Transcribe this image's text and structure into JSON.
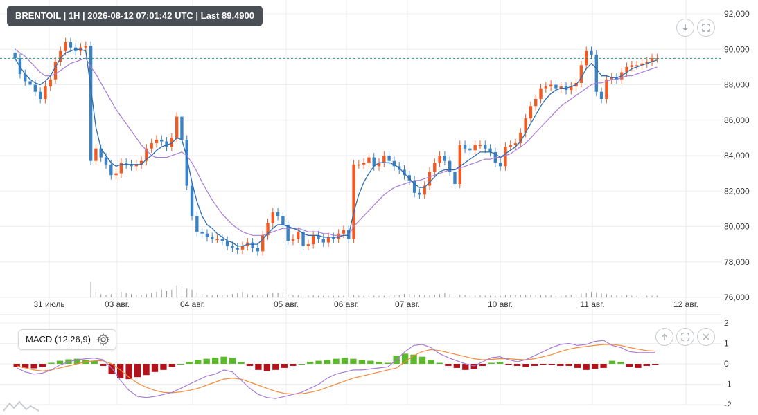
{
  "header": {
    "title": "BRENTOIL | 1H | 2026-08-12 07:01:42 UTC | Last 89.4900"
  },
  "indicator": {
    "label": "MACD (12,26,9)",
    "settings_icon": "gear-icon"
  },
  "controls": {
    "main": [
      "download-icon",
      "fullscreen-icon"
    ],
    "indicator": [
      "move-up-icon",
      "fullscreen-icon",
      "close-icon"
    ],
    "logo": "mountain-logo-icon"
  },
  "colors": {
    "up": "#f15a22",
    "down": "#3b82c4",
    "ma_fast": "#2b6cb0",
    "ma_slow": "#a77bd6",
    "last_line": "#16a085",
    "hist_pos": "#5cb82d",
    "hist_neg": "#b3121b",
    "macd_line": "#a77bd6",
    "signal_line": "#f28a3a",
    "volume": "#999999"
  },
  "chart_data": [
    {
      "type": "candlestick",
      "symbol": "BRENTOIL",
      "interval": "1H",
      "last_price": 89.49,
      "y_axis": {
        "ticks": [
          "76,000",
          "78,000",
          "80,000",
          "82,000",
          "84,000",
          "86,000",
          "88,000",
          "90,000",
          "92,000"
        ],
        "range": [
          76,
          92
        ]
      },
      "x_axis": {
        "ticks": [
          "31 июль",
          "03 авг.",
          "04 авг.",
          "05 авг.",
          "06 авг.",
          "07 авг.",
          "10 авг.",
          "11 авг.",
          "12 авг."
        ]
      },
      "grid": true,
      "close": [
        89.5,
        88.6,
        88.2,
        88.0,
        87.6,
        87.2,
        87.9,
        88.3,
        89.3,
        89.9,
        90.4,
        90.1,
        89.9,
        90.1,
        90.2,
        83.7,
        84.4,
        83.9,
        83.5,
        82.9,
        83.0,
        83.6,
        83.5,
        83.4,
        83.5,
        83.7,
        84.4,
        84.7,
        84.9,
        84.8,
        84.5,
        85.0,
        86.2,
        84.9,
        82.3,
        80.6,
        79.7,
        79.6,
        79.4,
        79.3,
        79.3,
        79.2,
        78.9,
        78.8,
        78.7,
        78.9,
        79.1,
        78.8,
        78.6,
        79.5,
        80.2,
        80.8,
        80.6,
        80.1,
        79.2,
        79.3,
        79.7,
        78.9,
        79.0,
        79.5,
        79.3,
        79.1,
        79.4,
        79.3,
        79.6,
        79.8,
        79.3,
        83.5,
        83.5,
        83.6,
        83.9,
        83.4,
        83.6,
        84.0,
        83.7,
        83.4,
        83.2,
        82.9,
        82.6,
        81.9,
        81.8,
        82.3,
        83.1,
        83.6,
        84.0,
        83.7,
        83.1,
        82.4,
        84.6,
        84.4,
        84.3,
        84.6,
        84.6,
        84.4,
        84.2,
        83.6,
        83.4,
        84.5,
        84.6,
        84.7,
        85.3,
        86.1,
        86.8,
        87.2,
        87.8,
        87.9,
        88.0,
        87.8,
        87.9,
        87.7,
        87.9,
        88.1,
        89.1,
        89.9,
        89.7,
        87.6,
        87.2,
        88.3,
        88.4,
        88.3,
        88.7,
        89.0,
        89.1,
        89.1,
        89.2,
        89.3,
        89.5,
        89.5
      ],
      "ma_fast_values": [
        89.5,
        89.0,
        88.6,
        88.3,
        88.1,
        88.0,
        88.2,
        88.5,
        89.0,
        89.5,
        89.8,
        89.9,
        90.0,
        90.0,
        89.9,
        87.8,
        85.6,
        84.4,
        84.0,
        83.6,
        83.4,
        83.5,
        83.5,
        83.5,
        83.5,
        83.5,
        83.8,
        84.0,
        84.3,
        84.5,
        84.6,
        84.7,
        85.0,
        84.9,
        83.9,
        82.5,
        81.4,
        80.6,
        80.1,
        79.9,
        79.6,
        79.4,
        79.2,
        79.1,
        78.9,
        78.9,
        79.0,
        79.0,
        79.0,
        79.3,
        79.6,
        79.9,
        80.1,
        80.1,
        80.0,
        79.9,
        79.8,
        79.6,
        79.5,
        79.5,
        79.5,
        79.4,
        79.4,
        79.4,
        79.4,
        79.5,
        79.5,
        80.8,
        81.8,
        82.5,
        83.0,
        83.4,
        83.6,
        83.6,
        83.6,
        83.5,
        83.3,
        83.0,
        82.7,
        82.4,
        82.2,
        82.2,
        82.5,
        82.8,
        83.1,
        83.2,
        83.2,
        83.2,
        83.4,
        83.6,
        83.8,
        84.0,
        84.2,
        84.2,
        84.2,
        84.1,
        83.9,
        84.1,
        84.3,
        84.5,
        84.8,
        85.3,
        85.8,
        86.3,
        86.8,
        87.2,
        87.5,
        87.7,
        87.8,
        87.8,
        87.9,
        88.0,
        88.4,
        88.9,
        89.2,
        88.9,
        88.5,
        88.5,
        88.4,
        88.4,
        88.5,
        88.7,
        88.9,
        89.0,
        89.1,
        89.2,
        89.3,
        89.4
      ],
      "ma_slow_values": [
        90.0,
        89.8,
        89.6,
        89.3,
        89.0,
        88.7,
        88.5,
        88.5,
        88.6,
        88.8,
        89.0,
        89.2,
        89.3,
        89.4,
        89.5,
        89.0,
        88.6,
        88.1,
        87.6,
        87.1,
        86.6,
        86.2,
        85.8,
        85.4,
        85.0,
        84.6,
        84.3,
        84.0,
        83.9,
        83.9,
        83.9,
        84.0,
        84.1,
        84.2,
        84.0,
        83.6,
        83.1,
        82.5,
        82.0,
        81.5,
        81.1,
        80.7,
        80.4,
        80.1,
        79.9,
        79.7,
        79.6,
        79.5,
        79.5,
        79.5,
        79.6,
        79.7,
        79.8,
        79.9,
        79.9,
        79.9,
        79.9,
        79.8,
        79.7,
        79.7,
        79.7,
        79.6,
        79.6,
        79.5,
        79.5,
        79.5,
        79.5,
        80.0,
        80.3,
        80.6,
        80.9,
        81.2,
        81.5,
        81.8,
        82.0,
        82.2,
        82.3,
        82.4,
        82.5,
        82.6,
        82.6,
        82.7,
        82.8,
        82.9,
        83.0,
        83.1,
        83.2,
        83.2,
        83.3,
        83.4,
        83.5,
        83.6,
        83.7,
        83.8,
        83.8,
        83.9,
        83.9,
        84.0,
        84.1,
        84.3,
        84.5,
        84.7,
        85.0,
        85.3,
        85.6,
        85.9,
        86.2,
        86.5,
        86.8,
        87.0,
        87.2,
        87.4,
        87.6,
        87.8,
        88.0,
        88.1,
        88.1,
        88.2,
        88.3,
        88.3,
        88.4,
        88.5,
        88.5,
        88.6,
        88.7,
        88.8,
        88.9,
        89.0
      ],
      "volume": [
        0,
        0,
        0,
        0,
        0,
        0,
        0,
        0,
        0,
        0,
        0,
        0,
        0,
        0,
        0,
        28,
        10,
        6,
        5,
        6,
        8,
        10,
        8,
        6,
        5,
        5,
        6,
        8,
        10,
        14,
        12,
        14,
        22,
        20,
        16,
        14,
        8,
        6,
        5,
        4,
        5,
        4,
        4,
        6,
        8,
        10,
        6,
        4,
        4,
        4,
        6,
        8,
        8,
        10,
        6,
        4,
        4,
        4,
        4,
        4,
        3,
        3,
        3,
        3,
        3,
        3,
        100,
        4,
        3,
        3,
        3,
        3,
        3,
        3,
        3,
        4,
        4,
        6,
        6,
        5,
        5,
        4,
        4,
        5,
        6,
        8,
        6,
        4,
        5,
        5,
        4,
        4,
        4,
        3,
        3,
        3,
        3,
        4,
        4,
        4,
        4,
        4,
        5,
        5,
        4,
        4,
        4,
        3,
        4,
        4,
        5,
        6,
        7,
        8,
        10,
        9,
        7,
        6,
        4,
        4,
        4,
        4,
        3,
        3,
        3,
        3,
        3,
        3
      ]
    },
    {
      "type": "macd",
      "label": "MACD (12,26,9)",
      "y_axis": {
        "ticks": [
          "2",
          "1",
          "0",
          "-1",
          "-2"
        ],
        "range": [
          -2,
          2
        ]
      },
      "macd": [
        -0.2,
        -0.4,
        -0.5,
        -0.45,
        -0.3,
        -0.05,
        0.1,
        0.2,
        0.25,
        0.28,
        0.2,
        -0.2,
        -0.8,
        -1.3,
        -1.6,
        -1.65,
        -1.6,
        -1.5,
        -1.4,
        -1.2,
        -1.0,
        -0.8,
        -0.6,
        -0.5,
        -0.3,
        -0.4,
        -0.8,
        -1.2,
        -1.5,
        -1.65,
        -1.7,
        -1.6,
        -1.5,
        -1.4,
        -1.2,
        -1.0,
        -0.7,
        -0.5,
        -0.4,
        -0.3,
        -0.3,
        -0.25,
        -0.2,
        -0.15,
        0.2,
        0.6,
        0.9,
        0.95,
        0.8,
        0.5,
        0.3,
        0.15,
        0.0,
        -0.1,
        0.1,
        0.3,
        0.35,
        0.2,
        0.1,
        0.2,
        0.4,
        0.6,
        0.8,
        0.95,
        1.0,
        0.9,
        0.95,
        1.1,
        1.15,
        0.9,
        0.8,
        0.6,
        0.55,
        0.55,
        0.55
      ],
      "signal": [
        -0.1,
        -0.2,
        -0.3,
        -0.35,
        -0.3,
        -0.2,
        -0.1,
        0.0,
        0.1,
        0.15,
        0.15,
        0.0,
        -0.3,
        -0.65,
        -0.95,
        -1.15,
        -1.3,
        -1.4,
        -1.42,
        -1.38,
        -1.3,
        -1.2,
        -1.05,
        -0.9,
        -0.75,
        -0.7,
        -0.75,
        -0.9,
        -1.05,
        -1.2,
        -1.35,
        -1.45,
        -1.48,
        -1.47,
        -1.4,
        -1.3,
        -1.15,
        -1.0,
        -0.85,
        -0.7,
        -0.6,
        -0.5,
        -0.4,
        -0.3,
        -0.2,
        0.1,
        0.4,
        0.6,
        0.7,
        0.65,
        0.55,
        0.45,
        0.35,
        0.25,
        0.2,
        0.22,
        0.25,
        0.25,
        0.22,
        0.2,
        0.25,
        0.35,
        0.45,
        0.6,
        0.72,
        0.8,
        0.85,
        0.9,
        0.95,
        0.95,
        0.9,
        0.8,
        0.72,
        0.65,
        0.62
      ],
      "histogram": [
        -0.15,
        -0.2,
        -0.22,
        -0.15,
        0.05,
        0.15,
        0.22,
        0.25,
        0.2,
        0.15,
        -0.1,
        -0.5,
        -0.7,
        -0.75,
        -0.65,
        -0.55,
        -0.4,
        -0.3,
        -0.15,
        0.0,
        0.1,
        0.2,
        0.25,
        0.3,
        0.35,
        0.3,
        0.1,
        -0.1,
        -0.3,
        -0.35,
        -0.3,
        -0.2,
        -0.1,
        0.0,
        0.1,
        0.15,
        0.2,
        0.25,
        0.3,
        0.25,
        0.2,
        0.15,
        0.1,
        0.05,
        0.4,
        0.5,
        0.45,
        0.35,
        0.2,
        0.05,
        -0.1,
        -0.2,
        -0.3,
        -0.25,
        -0.1,
        0.05,
        0.1,
        -0.05,
        -0.1,
        -0.15,
        -0.1,
        -0.05,
        -0.05,
        -0.1,
        -0.1,
        -0.2,
        -0.3,
        -0.25,
        -0.2,
        0.15,
        0.1,
        -0.15,
        -0.2,
        -0.1,
        -0.05
      ]
    }
  ]
}
